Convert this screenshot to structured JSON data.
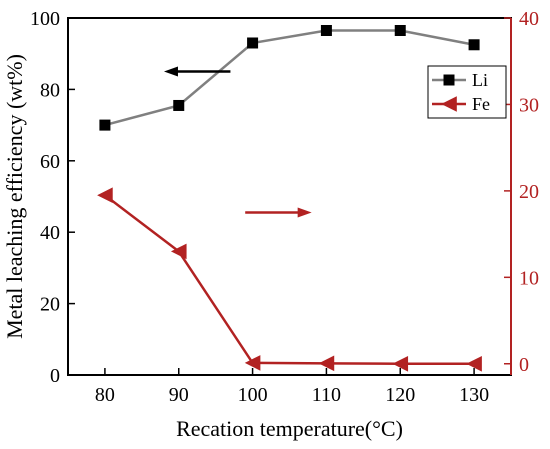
{
  "chart_data": {
    "type": "line",
    "xlabel": "Recation temperature(°C)",
    "ylabel": "Metal leaching efficiency (wt%)",
    "x": [
      80,
      90,
      100,
      110,
      120,
      130
    ],
    "xlim": [
      75,
      135
    ],
    "xticks": [
      "80",
      "90",
      "100",
      "110",
      "120",
      "130"
    ],
    "ylim_left": [
      0,
      100
    ],
    "yticks_left": [
      "0",
      "20",
      "40",
      "60",
      "80",
      "100"
    ],
    "ylim_right": [
      -1.3,
      40
    ],
    "yticks_right": [
      "0",
      "10",
      "20",
      "30",
      "40"
    ],
    "grid": false,
    "legend_position": "top-right",
    "series": [
      {
        "name": "Li",
        "axis": "left",
        "marker": "square",
        "line_color": "#808080",
        "marker_color": "#000000",
        "values": [
          70,
          75.5,
          93,
          96.5,
          96.5,
          92.5
        ]
      },
      {
        "name": "Fe",
        "axis": "right",
        "marker": "triangle-left",
        "line_color": "#b22222",
        "marker_color": "#b22222",
        "values": [
          19.5,
          13,
          0.1,
          0.05,
          0,
          0
        ]
      }
    ],
    "annotations": [
      {
        "type": "arrow",
        "points_to": "left-axis",
        "color": "#000000",
        "x": [
          97,
          88
        ],
        "y": 85
      },
      {
        "type": "arrow",
        "points_to": "right-axis",
        "color": "#b22222",
        "x": [
          99,
          108
        ],
        "y": 17.5
      }
    ],
    "colors": {
      "left_axis": "#000000",
      "right_axis": "#b22222"
    }
  }
}
